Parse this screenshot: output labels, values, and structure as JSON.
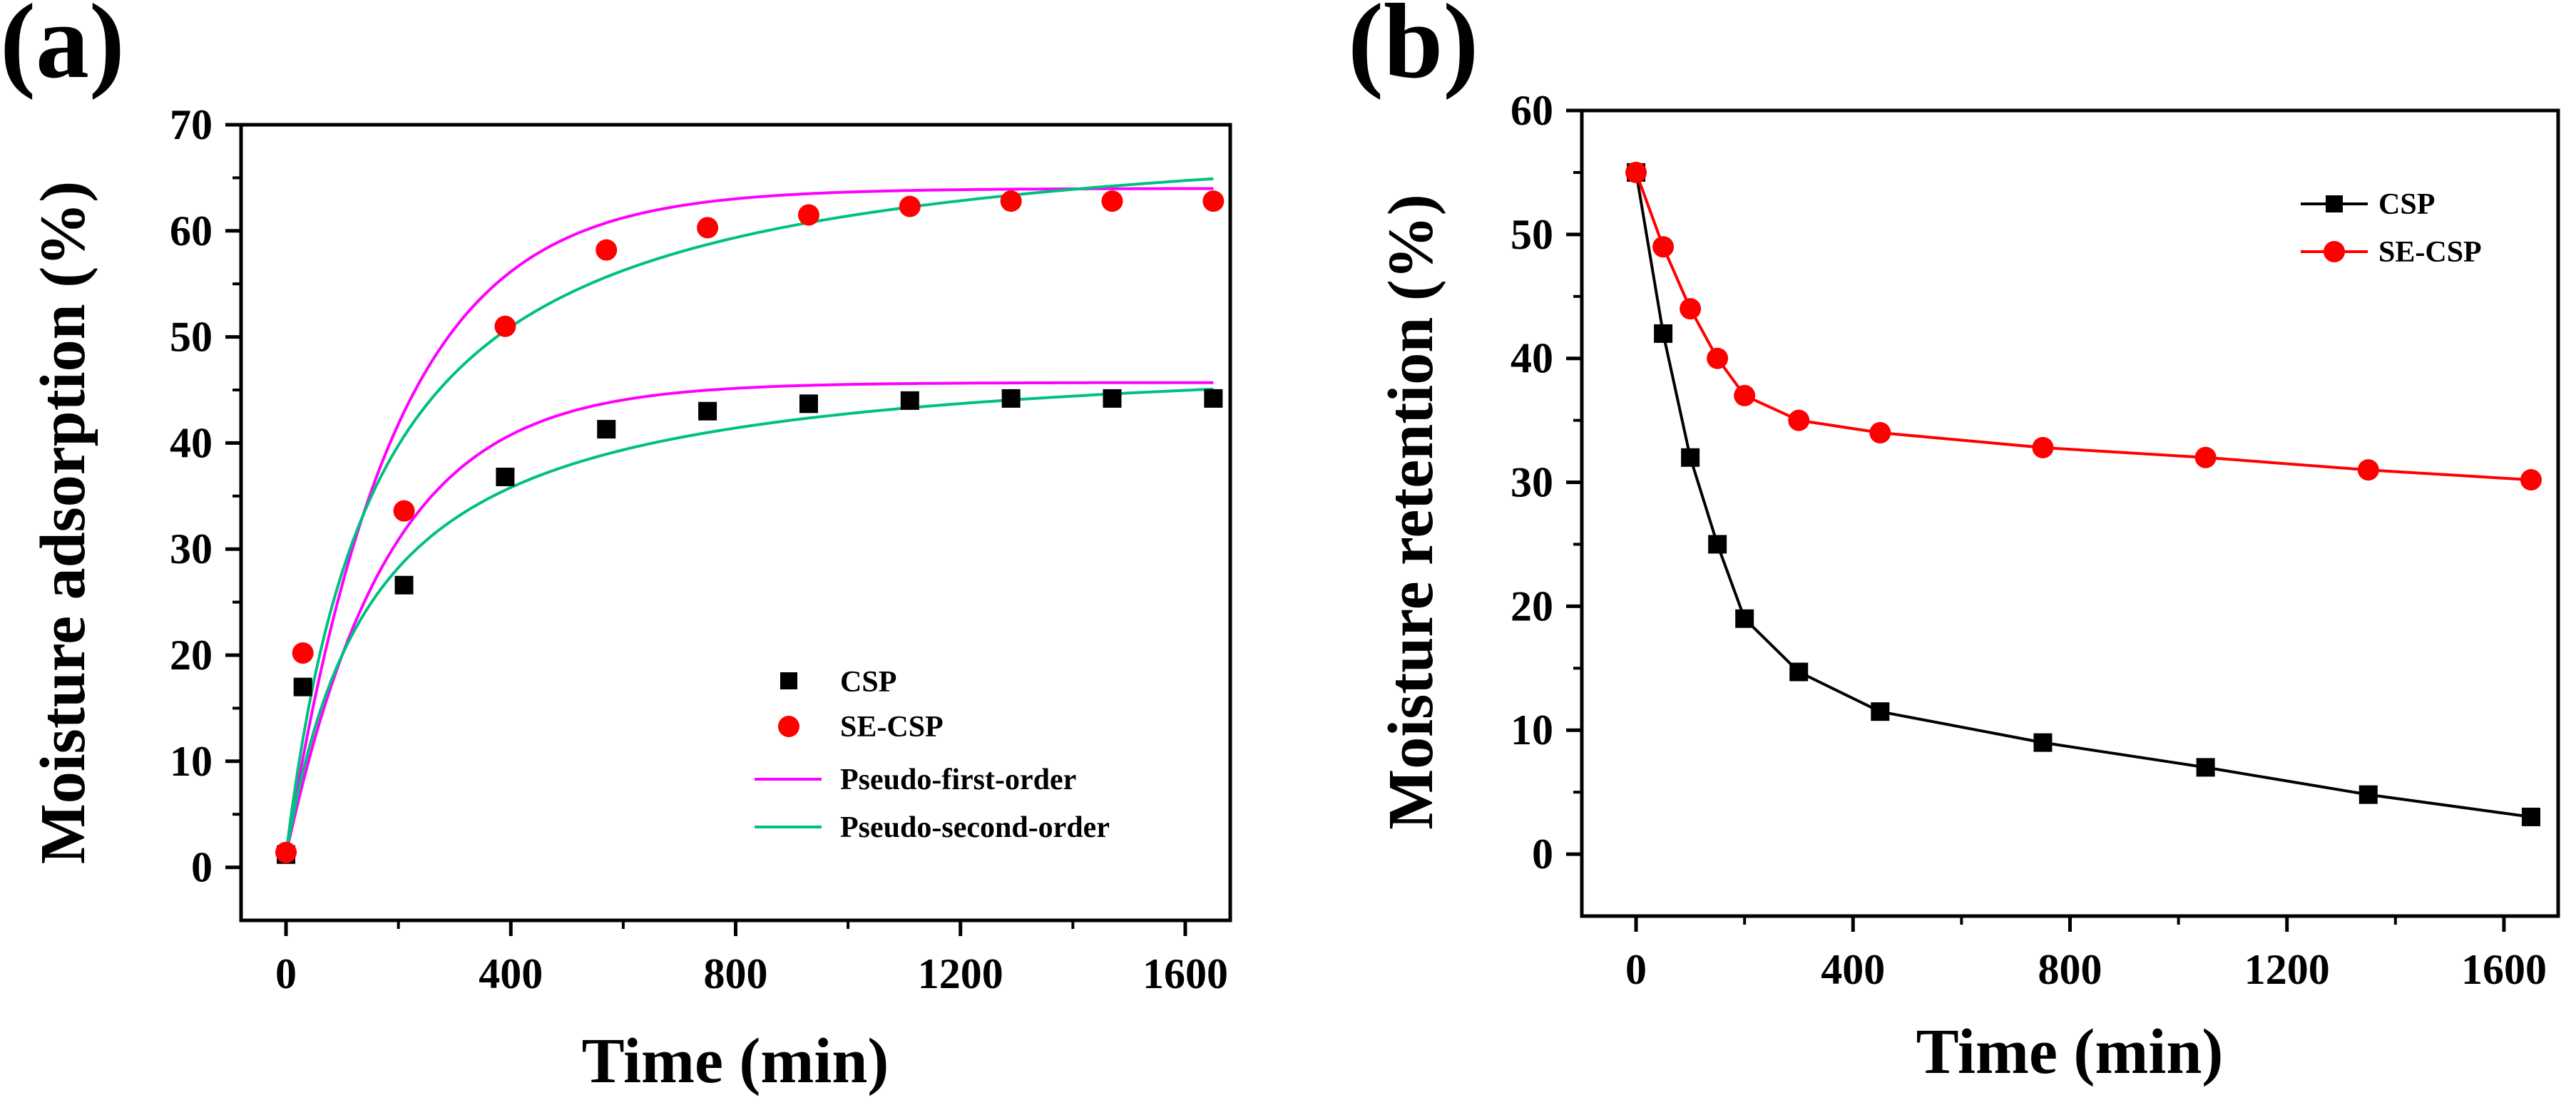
{
  "chart_data": [
    {
      "panel_label": "(a)",
      "type": "scatter",
      "xlabel": "Time (min)",
      "ylabel": "Moisture adsorption (%)",
      "xlim": [
        -80,
        1680
      ],
      "ylim": [
        -5,
        70
      ],
      "xticks": [
        0,
        400,
        800,
        1200,
        1600
      ],
      "yticks": [
        0,
        10,
        20,
        30,
        40,
        50,
        60,
        70
      ],
      "legend_position": "lower-right",
      "series": [
        {
          "name": "CSP",
          "kind": "points",
          "marker": "square",
          "color": "#000000",
          "x": [
            0,
            30,
            210,
            390,
            570,
            750,
            930,
            1110,
            1290,
            1470,
            1650
          ],
          "y": [
            1.2,
            17.0,
            26.6,
            36.8,
            41.3,
            43.0,
            43.7,
            44.0,
            44.2,
            44.2,
            44.2
          ]
        },
        {
          "name": "SE-CSP",
          "kind": "points",
          "marker": "circle",
          "color": "#ff0000",
          "x": [
            0,
            30,
            210,
            390,
            570,
            750,
            930,
            1110,
            1290,
            1470,
            1650
          ],
          "y": [
            1.4,
            20.2,
            33.6,
            51.0,
            58.2,
            60.3,
            61.5,
            62.3,
            62.8,
            62.8,
            62.8
          ]
        },
        {
          "name": "Pseudo-first-order",
          "kind": "line",
          "color": "#ff00ff",
          "model": "pfo",
          "fits": [
            {
              "qe": 62.8,
              "k": 0.0052
            },
            {
              "qe": 44.5,
              "k": 0.0055
            }
          ]
        },
        {
          "name": "Pseudo-second-order",
          "kind": "line",
          "color": "#00c080",
          "model": "pso",
          "fits": [
            {
              "qe": 70.0,
              "h": 0.43
            },
            {
              "qe": 48.0,
              "h": 0.31
            }
          ]
        }
      ]
    },
    {
      "panel_label": "(b)",
      "type": "line",
      "xlabel": "Time (min)",
      "ylabel": "Moisture retention (%)",
      "xlim": [
        -100,
        1700
      ],
      "ylim": [
        -5,
        60
      ],
      "xticks": [
        0,
        400,
        800,
        1200,
        1600
      ],
      "yticks": [
        0,
        10,
        20,
        30,
        40,
        50,
        60
      ],
      "legend_position": "top-right",
      "series": [
        {
          "name": "CSP",
          "kind": "line-points",
          "marker": "square",
          "color": "#000000",
          "x": [
            0,
            50,
            100,
            150,
            200,
            300,
            450,
            750,
            1050,
            1350,
            1650
          ],
          "y": [
            55,
            42,
            32,
            25,
            19,
            14.7,
            11.5,
            9,
            7,
            4.8,
            3
          ]
        },
        {
          "name": "SE-CSP",
          "kind": "line-points",
          "marker": "circle",
          "color": "#ff0000",
          "x": [
            0,
            50,
            100,
            150,
            200,
            300,
            450,
            750,
            1050,
            1350,
            1650
          ],
          "y": [
            55,
            49,
            44,
            40,
            37,
            35,
            34,
            32.8,
            32,
            31,
            30.2
          ]
        }
      ]
    }
  ]
}
